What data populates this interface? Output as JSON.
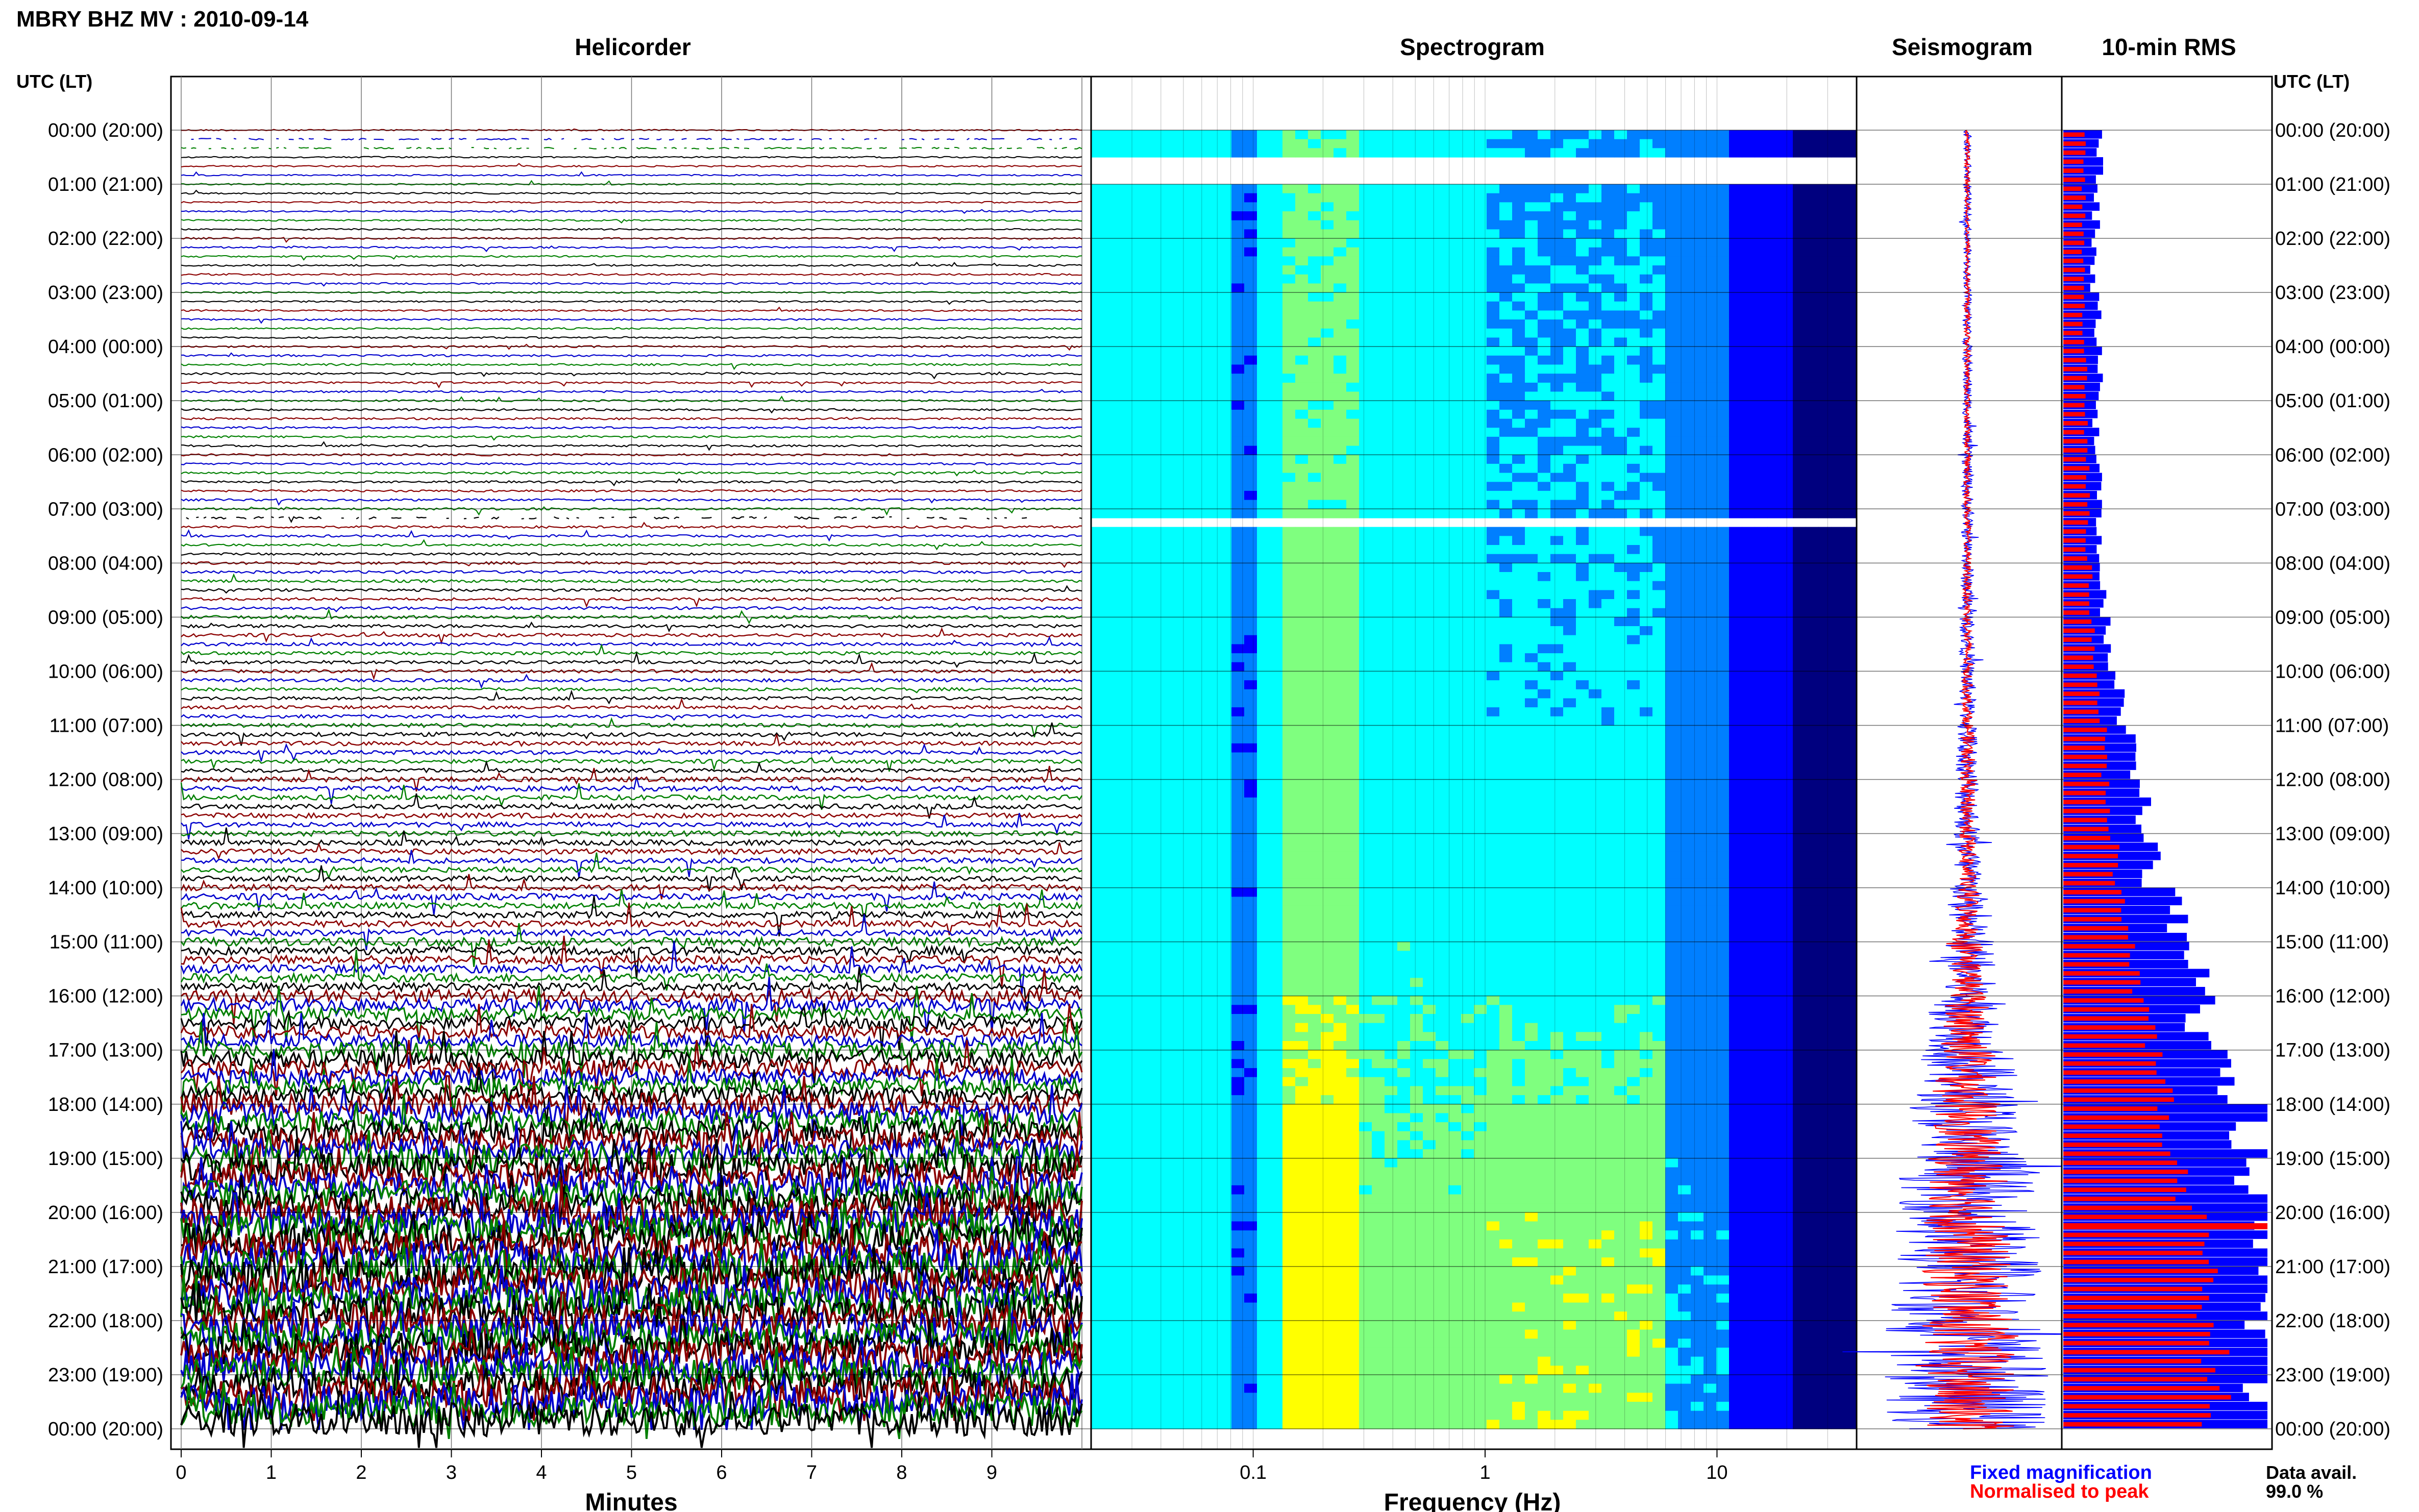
{
  "header": {
    "station_title": "MBRY BHZ MV : 2010-09-14",
    "time_axis_label": "UTC (LT)"
  },
  "panels": {
    "helicorder": {
      "title": "Helicorder",
      "xlabel": "Minutes"
    },
    "spectrogram": {
      "title": "Spectrogram",
      "xlabel": "Frequency (Hz)"
    },
    "seismogram": {
      "title": "Seismogram"
    },
    "rms": {
      "title": "10-min RMS"
    }
  },
  "legend": {
    "fixed": "Fixed magnification",
    "normalised": "Normalised to peak",
    "fixed_color": "#0000ff",
    "normalised_color": "#ff0000"
  },
  "data_availability": {
    "label": "Data avail.",
    "value": "99.0 %"
  },
  "chart_data": [
    {
      "type": "line",
      "name": "helicorder",
      "title": "Helicorder",
      "xlabel": "Minutes",
      "x_ticks": [
        "0",
        "1",
        "2",
        "3",
        "4",
        "5",
        "6",
        "7",
        "8",
        "9"
      ],
      "xlim": [
        0,
        10
      ],
      "y_ticks": [
        "00:00 (20:00)",
        "01:00 (21:00)",
        "02:00 (22:00)",
        "03:00 (23:00)",
        "04:00 (00:00)",
        "05:00 (01:00)",
        "06:00 (02:00)",
        "07:00 (03:00)",
        "08:00 (04:00)",
        "09:00 (05:00)",
        "10:00 (06:00)",
        "11:00 (07:00)",
        "12:00 (08:00)",
        "13:00 (09:00)",
        "14:00 (10:00)",
        "15:00 (11:00)",
        "16:00 (12:00)",
        "17:00 (13:00)",
        "18:00 (14:00)",
        "19:00 (15:00)",
        "20:00 (16:00)",
        "21:00 (17:00)",
        "22:00 (18:00)",
        "23:00 (19:00)",
        "00:00 (20:00)"
      ],
      "lines_per_hour": 6,
      "trace_colors": [
        "#8b0000",
        "#0000cd",
        "#008000",
        "#000000"
      ],
      "activity_level_by_hour": [
        0.04,
        0.05,
        0.06,
        0.06,
        0.08,
        0.08,
        0.09,
        0.1,
        0.13,
        0.16,
        0.16,
        0.2,
        0.24,
        0.26,
        0.3,
        0.38,
        0.5,
        0.62,
        0.75,
        0.85,
        0.95,
        0.95,
        0.95,
        0.95
      ],
      "gaps": [
        {
          "from_hour": 0.1,
          "to_hour": 0.5
        },
        {
          "from_hour": 7.05,
          "to_hour": 7.18
        }
      ]
    },
    {
      "type": "heatmap",
      "name": "spectrogram",
      "title": "Spectrogram",
      "xlabel": "Frequency (Hz)",
      "x_scale": "log",
      "xlim": [
        0.02,
        40
      ],
      "x_ticks": [
        {
          "value": 0.1,
          "label": "0.1"
        },
        {
          "value": 1,
          "label": "1"
        },
        {
          "value": 10,
          "label": "10"
        }
      ],
      "colormap": [
        "#00007f",
        "#0000ff",
        "#007fff",
        "#00ffff",
        "#7fff7f",
        "#ffff00",
        "#ff7f00"
      ],
      "peak_bands_hz": [
        0.15,
        3.0
      ],
      "gaps": [
        {
          "from_hour": 0.4,
          "to_hour": 0.9
        },
        {
          "from_hour": 7.1,
          "to_hour": 7.25
        }
      ]
    },
    {
      "type": "line",
      "name": "seismogram",
      "title": "Seismogram",
      "series": [
        {
          "name": "Fixed magnification",
          "color": "#0000ff"
        },
        {
          "name": "Normalised to peak",
          "color": "#ff0000"
        }
      ],
      "amplitude_envelope_by_hour": [
        0.04,
        0.04,
        0.04,
        0.05,
        0.05,
        0.05,
        0.06,
        0.06,
        0.07,
        0.08,
        0.09,
        0.12,
        0.14,
        0.16,
        0.22,
        0.3,
        0.4,
        0.52,
        0.6,
        0.7,
        0.78,
        0.82,
        0.85,
        0.85
      ]
    },
    {
      "type": "bar",
      "name": "10-min RMS",
      "title": "10-min RMS",
      "orientation": "horizontal",
      "series": [
        {
          "name": "Fixed magnification",
          "color": "#0000ff",
          "values": [
            0.18,
            0.16,
            0.15,
            0.17,
            0.19,
            0.16,
            0.17,
            0.18,
            0.2,
            0.22,
            0.27,
            0.33,
            0.4,
            0.43,
            0.55,
            0.65,
            0.68,
            0.75,
            0.92,
            0.95,
            0.98,
            1.0,
            1.0,
            1.0
          ]
        },
        {
          "name": "Normalised to peak",
          "color": "#ff0000",
          "values": [
            0.1,
            0.1,
            0.1,
            0.1,
            0.11,
            0.11,
            0.12,
            0.12,
            0.13,
            0.15,
            0.17,
            0.2,
            0.22,
            0.25,
            0.3,
            0.35,
            0.43,
            0.5,
            0.5,
            0.6,
            0.65,
            0.7,
            0.75,
            0.75
          ]
        }
      ],
      "highlight": {
        "hour": 20.2,
        "color": "#ff0000"
      }
    }
  ]
}
